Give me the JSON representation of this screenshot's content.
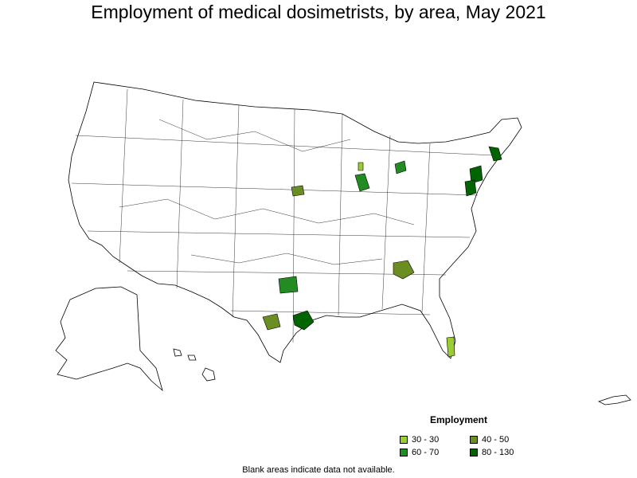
{
  "title": "Employment of medical dosimetrists, by area, May 2021",
  "legend": {
    "title": "Employment",
    "items": [
      {
        "label": "30 - 30",
        "color": "#9acd32"
      },
      {
        "label": "40 - 50",
        "color": "#6b8e23"
      },
      {
        "label": "60 - 70",
        "color": "#228b22"
      },
      {
        "label": "80 - 130",
        "color": "#006400"
      }
    ]
  },
  "footnote": "Blank areas indicate data not available."
}
